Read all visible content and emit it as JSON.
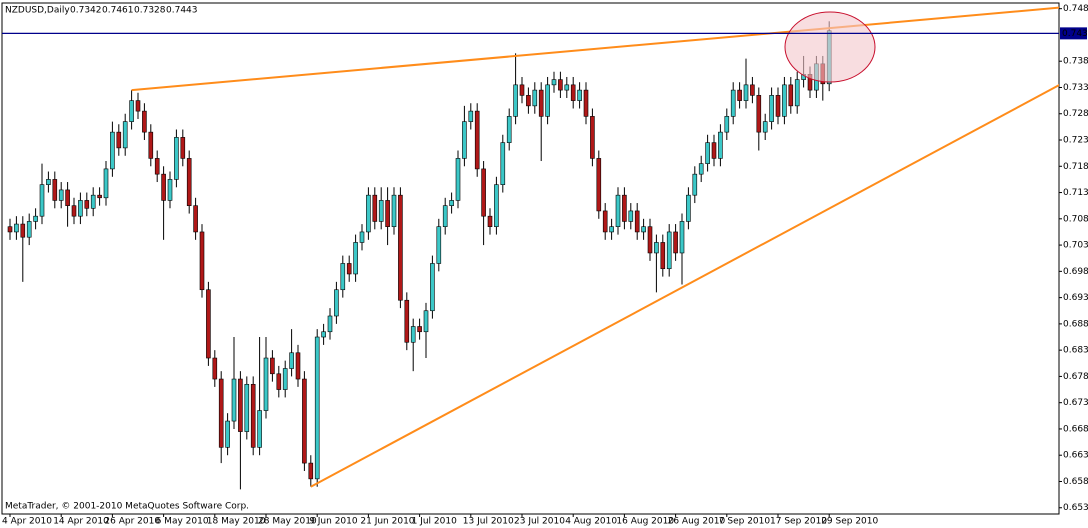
{
  "chart_data": {
    "type": "candlestick",
    "title": "NZDUSD,Daily",
    "footer": "MetaTrader, © 2001-2010 MetaQuotes Software Corp.",
    "categories": [
      "4 Apr 2010",
      null,
      null,
      null,
      null,
      null,
      null,
      null,
      "14 Apr 2010",
      null,
      null,
      null,
      null,
      null,
      null,
      null,
      "26 Apr 2010",
      null,
      null,
      null,
      null,
      null,
      null,
      null,
      "6 May 2010",
      null,
      null,
      null,
      null,
      null,
      null,
      null,
      "18 May 2010",
      null,
      null,
      null,
      null,
      null,
      null,
      null,
      "28 May 2010",
      null,
      null,
      null,
      null,
      null,
      null,
      null,
      "9 Jun 2010",
      null,
      null,
      null,
      null,
      null,
      null,
      null,
      "21 Jun 2010",
      null,
      null,
      null,
      null,
      null,
      null,
      null,
      "1 Jul 2010",
      null,
      null,
      null,
      null,
      null,
      null,
      null,
      "13 Jul 2010",
      null,
      null,
      null,
      null,
      null,
      null,
      null,
      "23 Jul 2010",
      null,
      null,
      null,
      null,
      null,
      null,
      null,
      "4 Aug 2010",
      null,
      null,
      null,
      null,
      null,
      null,
      null,
      "16 Aug 2010",
      null,
      null,
      null,
      null,
      null,
      null,
      null,
      "26 Aug 2010",
      null,
      null,
      null,
      null,
      null,
      null,
      null,
      "7 Sep 2010",
      null,
      null,
      null,
      null,
      null,
      null,
      null,
      "17 Sep 2010",
      null,
      null,
      null,
      null,
      null,
      null,
      null,
      "29 Sep 2010"
    ],
    "open": [
      0.707,
      0.706,
      0.7075,
      0.705,
      0.708,
      0.709,
      0.715,
      0.716,
      0.712,
      0.714,
      0.711,
      0.709,
      0.712,
      0.7105,
      0.713,
      0.7125,
      0.718,
      0.725,
      0.722,
      0.727,
      0.731,
      0.729,
      0.725,
      0.72,
      0.717,
      0.712,
      0.716,
      0.724,
      0.72,
      0.711,
      0.706,
      0.695,
      0.682,
      0.678,
      0.665,
      0.67,
      0.678,
      0.668,
      0.677,
      0.665,
      0.672,
      0.682,
      0.679,
      0.676,
      0.68,
      0.683,
      0.678,
      0.662,
      0.659,
      0.686,
      0.687,
      0.69,
      0.695,
      0.7,
      0.698,
      0.704,
      0.706,
      0.713,
      0.708,
      0.712,
      0.707,
      0.713,
      0.693,
      0.685,
      0.688,
      0.687,
      0.691,
      0.7,
      0.707,
      0.711,
      0.712,
      0.72,
      0.727,
      0.729,
      0.718,
      0.709,
      0.707,
      0.715,
      0.723,
      0.728,
      0.734,
      0.732,
      0.73,
      0.733,
      0.728,
      0.734,
      0.735,
      0.733,
      0.734,
      0.731,
      0.733,
      0.728,
      0.72,
      0.71,
      0.706,
      0.707,
      0.713,
      0.708,
      0.71,
      0.706,
      0.707,
      0.702,
      0.704,
      0.699,
      0.706,
      0.702,
      0.708,
      0.713,
      0.717,
      0.719,
      0.723,
      0.72,
      0.725,
      0.728,
      0.733,
      0.731,
      0.734,
      0.732,
      0.725,
      0.727,
      0.732,
      0.728,
      0.734,
      0.73,
      0.735,
      0.736,
      0.733,
      0.738,
      0.7342
    ],
    "high": [
      0.7085,
      0.709,
      0.709,
      0.7095,
      0.7105,
      0.719,
      0.7175,
      0.7175,
      0.7155,
      0.7155,
      0.7125,
      0.7135,
      0.7135,
      0.7145,
      0.7145,
      0.7195,
      0.727,
      0.7265,
      0.7285,
      0.733,
      0.7325,
      0.7305,
      0.7265,
      0.7215,
      0.7185,
      0.7175,
      0.7255,
      0.7255,
      0.7215,
      0.7125,
      0.7075,
      0.6965,
      0.6835,
      0.6795,
      0.6715,
      0.686,
      0.6795,
      0.6785,
      0.6785,
      0.686,
      0.686,
      0.6835,
      0.6805,
      0.6815,
      0.6875,
      0.6845,
      0.6795,
      0.6635,
      0.6875,
      0.6885,
      0.6915,
      0.6965,
      0.7015,
      0.7015,
      0.7055,
      0.7075,
      0.7145,
      0.7145,
      0.7145,
      0.7145,
      0.7145,
      0.7145,
      0.6945,
      0.6895,
      0.6895,
      0.6925,
      0.7015,
      0.7085,
      0.7125,
      0.7135,
      0.7215,
      0.73,
      0.7305,
      0.7305,
      0.7195,
      0.7105,
      0.7165,
      0.7245,
      0.7295,
      0.74,
      0.7355,
      0.7335,
      0.7345,
      0.7345,
      0.7355,
      0.7365,
      0.7365,
      0.7355,
      0.7355,
      0.7345,
      0.7345,
      0.7295,
      0.7215,
      0.7115,
      0.7085,
      0.7145,
      0.7145,
      0.7115,
      0.7115,
      0.7085,
      0.7085,
      0.7055,
      0.7055,
      0.7075,
      0.7075,
      0.7095,
      0.7145,
      0.7185,
      0.7205,
      0.7245,
      0.7245,
      0.7265,
      0.7295,
      0.7345,
      0.7345,
      0.739,
      0.7355,
      0.7335,
      0.7285,
      0.7335,
      0.7335,
      0.7355,
      0.7355,
      0.7365,
      0.7395,
      0.7375,
      0.7395,
      0.7395,
      0.7461
    ],
    "low": [
      0.7045,
      0.7045,
      0.6965,
      0.7035,
      0.7065,
      0.7075,
      0.7135,
      0.7105,
      0.7105,
      0.707,
      0.7075,
      0.7075,
      0.709,
      0.709,
      0.711,
      0.711,
      0.7165,
      0.7205,
      0.7205,
      0.7255,
      0.7275,
      0.7235,
      0.7185,
      0.7155,
      0.7045,
      0.7105,
      0.7145,
      0.7185,
      0.7095,
      0.7045,
      0.6935,
      0.6805,
      0.6765,
      0.662,
      0.6635,
      0.6685,
      0.657,
      0.6665,
      0.6635,
      0.6635,
      0.6705,
      0.6775,
      0.6745,
      0.6745,
      0.6785,
      0.6765,
      0.6605,
      0.6575,
      0.6575,
      0.6845,
      0.6855,
      0.6885,
      0.6935,
      0.6965,
      0.6965,
      0.7025,
      0.7045,
      0.7065,
      0.7065,
      0.7035,
      0.7055,
      0.6915,
      0.6835,
      0.6795,
      0.6855,
      0.682,
      0.6895,
      0.6985,
      0.7055,
      0.7095,
      0.7105,
      0.7185,
      0.7255,
      0.7165,
      0.7035,
      0.7055,
      0.7055,
      0.7135,
      0.7215,
      0.7265,
      0.7305,
      0.7285,
      0.7285,
      0.7195,
      0.7265,
      0.7325,
      0.7315,
      0.7315,
      0.7295,
      0.7295,
      0.7265,
      0.7185,
      0.7085,
      0.7045,
      0.7045,
      0.7055,
      0.7065,
      0.7065,
      0.7045,
      0.7045,
      0.7005,
      0.6945,
      0.6975,
      0.6975,
      0.7005,
      0.696,
      0.7065,
      0.7115,
      0.7155,
      0.7175,
      0.7185,
      0.7185,
      0.7235,
      0.7265,
      0.7295,
      0.7295,
      0.7305,
      0.7215,
      0.7235,
      0.7255,
      0.7265,
      0.7265,
      0.7285,
      0.7285,
      0.7335,
      0.7315,
      0.7315,
      0.731,
      0.7328
    ],
    "close": [
      0.706,
      0.7075,
      0.705,
      0.708,
      0.709,
      0.715,
      0.716,
      0.712,
      0.714,
      0.711,
      0.709,
      0.712,
      0.7105,
      0.713,
      0.7125,
      0.718,
      0.725,
      0.722,
      0.727,
      0.731,
      0.729,
      0.725,
      0.72,
      0.717,
      0.712,
      0.716,
      0.724,
      0.72,
      0.711,
      0.706,
      0.695,
      0.682,
      0.678,
      0.665,
      0.67,
      0.678,
      0.668,
      0.677,
      0.665,
      0.672,
      0.682,
      0.679,
      0.676,
      0.68,
      0.683,
      0.678,
      0.662,
      0.659,
      0.686,
      0.687,
      0.69,
      0.695,
      0.7,
      0.698,
      0.704,
      0.706,
      0.713,
      0.708,
      0.712,
      0.707,
      0.713,
      0.693,
      0.685,
      0.688,
      0.687,
      0.691,
      0.7,
      0.707,
      0.711,
      0.712,
      0.72,
      0.727,
      0.729,
      0.718,
      0.709,
      0.707,
      0.715,
      0.723,
      0.728,
      0.734,
      0.732,
      0.73,
      0.733,
      0.728,
      0.734,
      0.735,
      0.733,
      0.734,
      0.731,
      0.733,
      0.728,
      0.72,
      0.71,
      0.706,
      0.707,
      0.713,
      0.708,
      0.71,
      0.706,
      0.707,
      0.702,
      0.704,
      0.699,
      0.706,
      0.702,
      0.708,
      0.713,
      0.717,
      0.719,
      0.723,
      0.72,
      0.725,
      0.728,
      0.733,
      0.731,
      0.734,
      0.732,
      0.725,
      0.727,
      0.732,
      0.728,
      0.734,
      0.73,
      0.735,
      0.736,
      0.733,
      0.738,
      0.7342,
      0.7443
    ],
    "up_color": "#3cc8c8",
    "down_color": "#b01818",
    "ylim": [
      0.6525,
      0.7492
    ],
    "yticks": [
      0.7485,
      0.7385,
      0.7335,
      0.7285,
      0.7235,
      0.7185,
      0.7135,
      0.7085,
      0.7035,
      0.6985,
      0.6935,
      0.6885,
      0.6835,
      0.6785,
      0.6735,
      0.6685,
      0.6635,
      0.6585,
      0.6535
    ],
    "current_price": 0.7438,
    "current_price_color": "#00008b",
    "trendlines": [
      {
        "color": "#ff8c1a",
        "x": [
          19,
          164
        ],
        "y": [
          0.733,
          0.7487
        ]
      },
      {
        "color": "#ff8c1a",
        "x": [
          47,
          164
        ],
        "y": [
          0.6575,
          0.734
        ]
      }
    ]
  }
}
